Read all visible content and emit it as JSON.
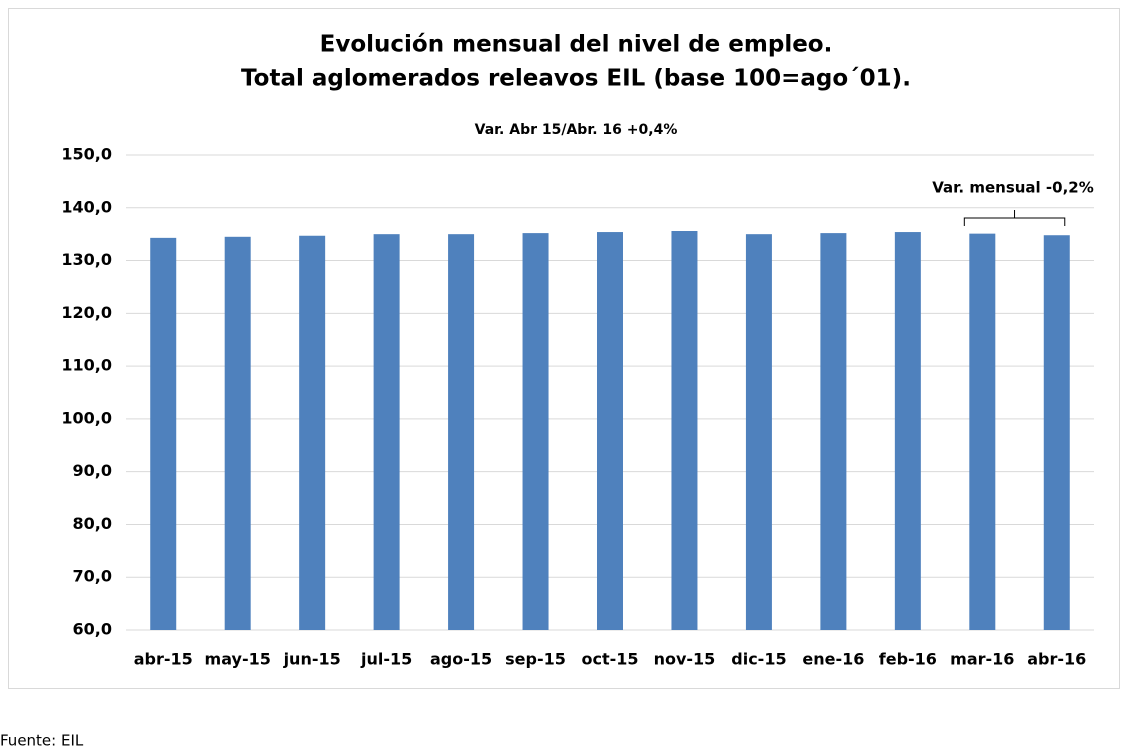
{
  "chart_data": {
    "type": "bar",
    "title": [
      "Evolución mensual del nivel de empleo.",
      "Total aglomerados releavos EIL (base 100=ago´01)."
    ],
    "subtitle": "Var. Abr 15/Abr. 16 +0,4%",
    "annotation": "Var. mensual -0,2%",
    "source": "Fuente: EIL",
    "categories": [
      "abr-15",
      "may-15",
      "jun-15",
      "jul-15",
      "ago-15",
      "sep-15",
      "oct-15",
      "nov-15",
      "dic-15",
      "ene-16",
      "feb-16",
      "mar-16",
      "abr-16"
    ],
    "values": [
      134.3,
      134.5,
      134.7,
      135.0,
      135.0,
      135.2,
      135.4,
      135.6,
      135.0,
      135.2,
      135.4,
      135.1,
      134.8
    ],
    "color": "#4f81bd",
    "ylim": [
      60,
      150
    ],
    "yticks": [
      {
        "value": 60,
        "label": "60,0"
      },
      {
        "value": 70,
        "label": "70,0"
      },
      {
        "value": 80,
        "label": "80,0"
      },
      {
        "value": 90,
        "label": "90,0"
      },
      {
        "value": 100,
        "label": "100,0"
      },
      {
        "value": 110,
        "label": "110,0"
      },
      {
        "value": 120,
        "label": "120,0"
      },
      {
        "value": 130,
        "label": "130,0"
      },
      {
        "value": 140,
        "label": "140,0"
      },
      {
        "value": 150,
        "label": "150,0"
      }
    ],
    "grid": true
  }
}
